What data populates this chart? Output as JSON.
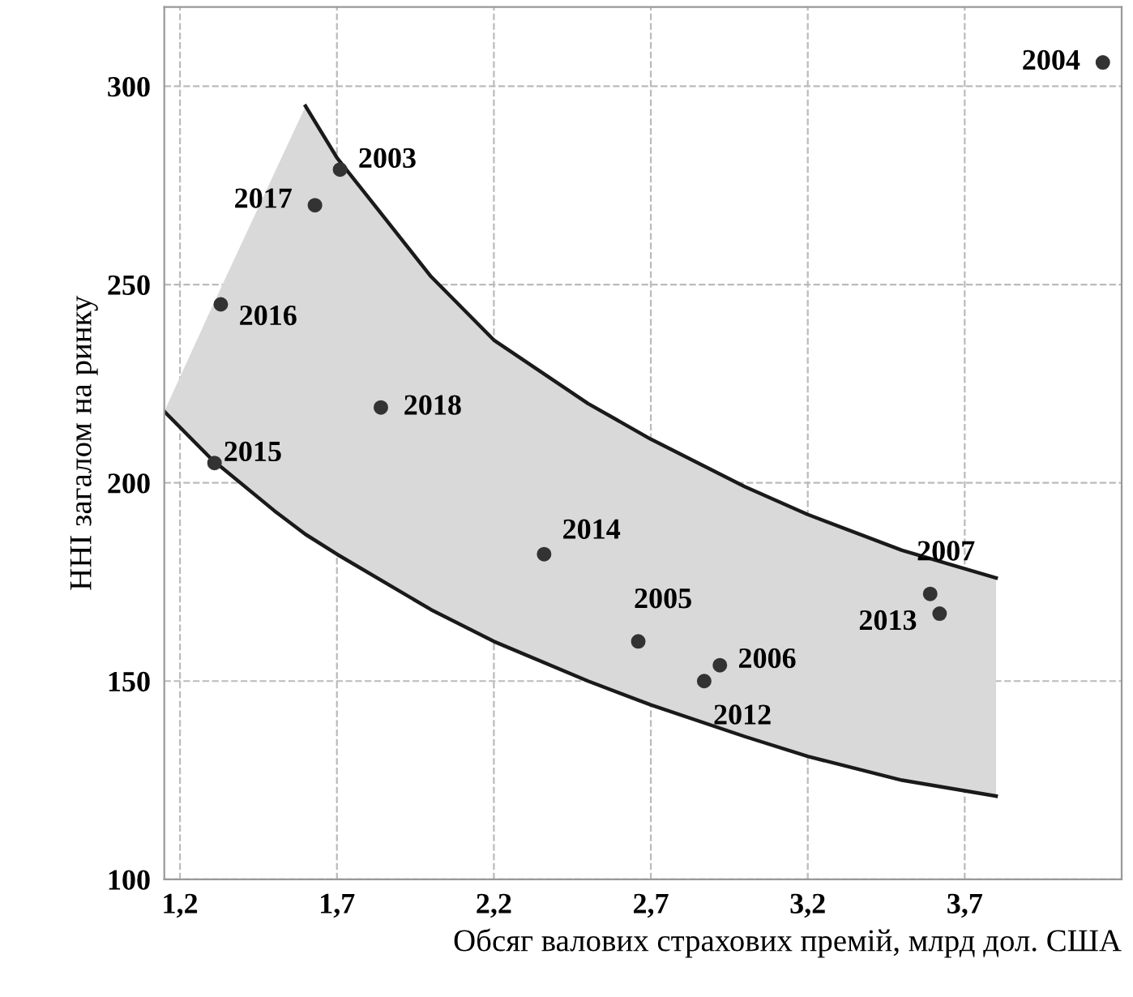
{
  "chart_data": {
    "type": "scatter",
    "xlabel": "Обсяг валових страхових премій, млрд дол. США",
    "ylabel": "ННІ загалом на ринку",
    "xlim": [
      1.15,
      4.2
    ],
    "ylim": [
      100,
      320
    ],
    "xticks": [
      {
        "value": 1.2,
        "label": "1,2"
      },
      {
        "value": 1.7,
        "label": "1,7"
      },
      {
        "value": 2.2,
        "label": "2,2"
      },
      {
        "value": 2.7,
        "label": "2,7"
      },
      {
        "value": 3.2,
        "label": "3,2"
      },
      {
        "value": 3.7,
        "label": "3,7"
      }
    ],
    "yticks": [
      100,
      150,
      200,
      250,
      300
    ],
    "grid": true,
    "series": [
      {
        "type": "line",
        "color": "#1a1a1a",
        "x": [
          1.15,
          1.3,
          1.5,
          1.6,
          1.7,
          2.0,
          2.2,
          2.5,
          2.7,
          3.0,
          3.2,
          3.5,
          3.8
        ],
        "values": [
          null,
          null,
          null,
          295,
          282,
          252,
          236,
          220,
          211,
          199,
          192,
          183,
          176
        ],
        "upper": [
          218,
          244,
          278,
          295,
          282,
          252,
          236,
          220,
          211,
          199,
          192,
          183,
          176
        ],
        "lower": [
          218,
          206,
          193,
          187,
          182,
          168,
          160,
          150,
          144,
          136,
          131,
          125,
          121
        ]
      },
      {
        "type": "line",
        "color": "#1a1a1a",
        "x": [
          1.15,
          1.3,
          1.5,
          1.6,
          1.7,
          2.0,
          2.2,
          2.5,
          2.7,
          3.0,
          3.2,
          3.5,
          3.8
        ],
        "values": [
          218,
          206,
          193,
          187,
          182,
          168,
          160,
          150,
          144,
          136,
          131,
          125,
          121
        ]
      },
      {
        "color": "#333333",
        "marker": "circle",
        "x": [
          1.71,
          1.63,
          1.33,
          1.84,
          1.31,
          2.36,
          2.66,
          2.92,
          2.87,
          3.59,
          3.62,
          4.14
        ],
        "values": [
          279,
          270,
          245,
          219,
          205,
          182,
          160,
          154,
          150,
          172,
          167,
          306
        ]
      }
    ],
    "annotations": [
      {
        "text": "2003",
        "x": 1.71,
        "y": 279
      },
      {
        "text": "2017",
        "x": 1.63,
        "y": 270
      },
      {
        "text": "2016",
        "x": 1.33,
        "y": 245
      },
      {
        "text": "2018",
        "x": 1.84,
        "y": 219
      },
      {
        "text": "2015",
        "x": 1.31,
        "y": 205
      },
      {
        "text": "2014",
        "x": 2.36,
        "y": 182
      },
      {
        "text": "2005",
        "x": 2.66,
        "y": 160
      },
      {
        "text": "2006",
        "x": 2.92,
        "y": 154
      },
      {
        "text": "2012",
        "x": 2.87,
        "y": 150
      },
      {
        "text": "2007",
        "x": 3.59,
        "y": 172
      },
      {
        "text": "2013",
        "x": 3.62,
        "y": 167
      },
      {
        "text": "2004",
        "x": 4.14,
        "y": 306
      }
    ]
  }
}
